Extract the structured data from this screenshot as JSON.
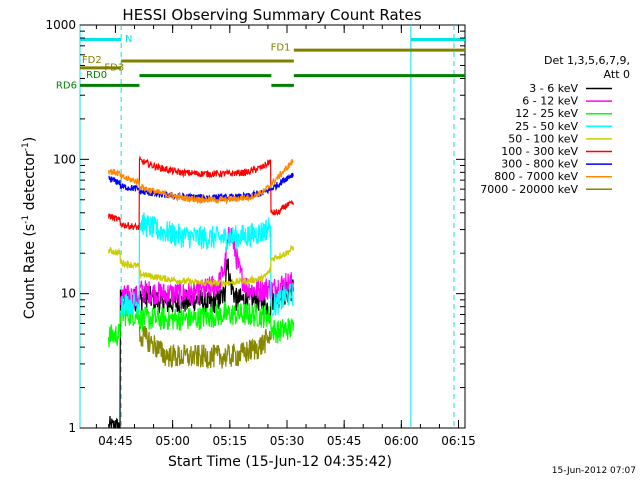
{
  "chart_data": {
    "type": "line",
    "title": "HESSI Observing Summary Count Rates",
    "xlabel": "Start Time (15-Jun-12 04:35:42)",
    "ylabel_main": "Count Rate (s",
    "ylabel_sup1": "-1",
    "ylabel_mid": " detector",
    "ylabel_sup2": "-1",
    "ylabel_end": ")",
    "x_range_minutes": [
      0,
      101
    ],
    "x_ticks": [
      {
        "label": "04:45",
        "t": 9.3
      },
      {
        "label": "05:00",
        "t": 24.3
      },
      {
        "label": "05:15",
        "t": 39.3
      },
      {
        "label": "05:30",
        "t": 54.3
      },
      {
        "label": "05:45",
        "t": 69.3
      },
      {
        "label": "06:00",
        "t": 84.3
      },
      {
        "label": "06:15",
        "t": 99.3
      }
    ],
    "y_scale": "log",
    "y_range": [
      1,
      1000
    ],
    "y_ticks": [
      {
        "label": "1",
        "v": 1
      },
      {
        "label": "10",
        "v": 10
      },
      {
        "label": "100",
        "v": 100
      },
      {
        "label": "1000",
        "v": 1000
      }
    ],
    "legend_title": "Det 1,3,5,6,7,9,",
    "legend_subtitle": "Att 0",
    "legend_placement": "right",
    "series": [
      {
        "name": "3 - 6 keV",
        "color": "#000000",
        "points": [
          [
            7.5,
            1
          ],
          [
            10.5,
            1
          ],
          [
            10.6,
            9
          ],
          [
            15.5,
            9
          ],
          [
            17.5,
            9.5
          ],
          [
            22,
            8.5
          ],
          [
            26,
            8.5
          ],
          [
            30,
            9
          ],
          [
            34,
            8.5
          ],
          [
            36.5,
            9
          ],
          [
            38,
            10
          ],
          [
            38.5,
            18
          ],
          [
            39.5,
            12
          ],
          [
            41,
            9
          ],
          [
            44,
            9
          ],
          [
            47,
            9
          ],
          [
            49,
            8
          ],
          [
            50,
            8
          ],
          [
            50.1,
            9
          ],
          [
            52,
            9.5
          ],
          [
            54,
            10
          ],
          [
            56,
            11
          ]
        ]
      },
      {
        "name": "6 - 12 keV",
        "color": "#ff00ff",
        "points": [
          [
            10.6,
            9.5
          ],
          [
            15.5,
            9.5
          ],
          [
            15.6,
            10.5
          ],
          [
            22,
            10
          ],
          [
            26,
            10
          ],
          [
            30,
            10
          ],
          [
            34,
            11
          ],
          [
            36.5,
            12
          ],
          [
            38,
            16
          ],
          [
            39.3,
            30
          ],
          [
            40.5,
            22
          ],
          [
            42,
            14
          ],
          [
            44,
            11
          ],
          [
            47,
            10.5
          ],
          [
            49,
            11
          ],
          [
            50,
            11
          ],
          [
            50.1,
            10.5
          ],
          [
            52,
            11.5
          ],
          [
            54,
            12
          ],
          [
            56,
            12
          ]
        ]
      },
      {
        "name": "12 - 25 keV",
        "color": "#00ff00",
        "points": [
          [
            7.5,
            4.8
          ],
          [
            10.5,
            5
          ],
          [
            10.6,
            7
          ],
          [
            15.5,
            7
          ],
          [
            15.6,
            6.5
          ],
          [
            22,
            6.5
          ],
          [
            30,
            6.5
          ],
          [
            34,
            6.8
          ],
          [
            38,
            7
          ],
          [
            40,
            7
          ],
          [
            44,
            7
          ],
          [
            49,
            6.8
          ],
          [
            50,
            6.8
          ],
          [
            50.1,
            5.5
          ],
          [
            52,
            5.2
          ],
          [
            54,
            5.5
          ],
          [
            56,
            5.5
          ]
        ]
      },
      {
        "name": "25 - 50 keV",
        "color": "#00ffff",
        "points": [
          [
            10.6,
            8.5
          ],
          [
            15.5,
            8.5
          ],
          [
            15.6,
            34
          ],
          [
            20,
            30
          ],
          [
            26,
            27
          ],
          [
            32,
            26
          ],
          [
            38,
            26
          ],
          [
            44,
            27
          ],
          [
            48,
            29
          ],
          [
            50,
            32
          ],
          [
            50.1,
            8
          ],
          [
            52,
            8.5
          ],
          [
            54,
            9.5
          ],
          [
            56,
            10
          ]
        ]
      },
      {
        "name": "50 - 100 keV",
        "color": "#cccc00",
        "points": [
          [
            7.5,
            21
          ],
          [
            10.5,
            20
          ],
          [
            10.6,
            17
          ],
          [
            15.5,
            16
          ],
          [
            15.6,
            14
          ],
          [
            22,
            13
          ],
          [
            26,
            12.5
          ],
          [
            32,
            12
          ],
          [
            38,
            12
          ],
          [
            44,
            12.5
          ],
          [
            48,
            13
          ],
          [
            50,
            15
          ],
          [
            50.1,
            18
          ],
          [
            52,
            19
          ],
          [
            54,
            20
          ],
          [
            56,
            22
          ]
        ]
      },
      {
        "name": "100 - 300 keV",
        "color": "#ff0000",
        "points": [
          [
            7.5,
            38
          ],
          [
            10.5,
            35
          ],
          [
            10.6,
            33
          ],
          [
            15.5,
            31
          ],
          [
            15.6,
            98
          ],
          [
            20,
            88
          ],
          [
            26,
            80
          ],
          [
            32,
            78
          ],
          [
            38,
            78
          ],
          [
            44,
            80
          ],
          [
            48,
            88
          ],
          [
            50,
            97
          ],
          [
            50.1,
            40
          ],
          [
            52,
            40
          ],
          [
            54,
            45
          ],
          [
            56,
            47
          ]
        ]
      },
      {
        "name": "300 - 800 keV",
        "color": "#0000ff",
        "points": [
          [
            7.5,
            72
          ],
          [
            10.5,
            67
          ],
          [
            10.6,
            63
          ],
          [
            15.5,
            60
          ],
          [
            15.6,
            58
          ],
          [
            20,
            55
          ],
          [
            26,
            53
          ],
          [
            32,
            52
          ],
          [
            38,
            52
          ],
          [
            44,
            53
          ],
          [
            48,
            56
          ],
          [
            50,
            60
          ],
          [
            50.1,
            60
          ],
          [
            52,
            65
          ],
          [
            54,
            72
          ],
          [
            56,
            78
          ]
        ]
      },
      {
        "name": "800 - 7000 keV",
        "color": "#ff8800",
        "points": [
          [
            7.5,
            82
          ],
          [
            10.5,
            78
          ],
          [
            10.6,
            74
          ],
          [
            15.5,
            68
          ],
          [
            15.6,
            63
          ],
          [
            20,
            57
          ],
          [
            26,
            52
          ],
          [
            32,
            50
          ],
          [
            38,
            50
          ],
          [
            44,
            52
          ],
          [
            48,
            57
          ],
          [
            50,
            64
          ],
          [
            50.1,
            65
          ],
          [
            52,
            74
          ],
          [
            54,
            85
          ],
          [
            56,
            98
          ]
        ]
      },
      {
        "name": "7000 - 20000 keV",
        "color": "#888800",
        "points": [
          [
            15.6,
            5
          ],
          [
            18,
            4.5
          ],
          [
            20,
            4
          ],
          [
            22,
            3.5
          ],
          [
            26,
            3.4
          ],
          [
            32,
            3.4
          ],
          [
            38,
            3.4
          ],
          [
            42,
            3.5
          ],
          [
            44,
            3.7
          ],
          [
            47,
            4
          ],
          [
            49,
            4.5
          ],
          [
            50,
            5
          ]
        ]
      }
    ],
    "attenuator_bars": [
      {
        "label": "N",
        "color": "#00e5e5",
        "row_value": 780,
        "segments": [
          [
            0,
            10.8
          ],
          [
            86.8,
            101
          ]
        ]
      },
      {
        "label": "FD1",
        "color": "#808000",
        "row_value": 650,
        "segments": [
          [
            56.1,
            101
          ]
        ]
      },
      {
        "label": "FD2",
        "color": "#808000",
        "row_value": 540,
        "segments": [
          [
            10.8,
            56.1
          ]
        ]
      },
      {
        "label": "FD3",
        "color": "#808000",
        "row_value": 480,
        "segments": [
          [
            0,
            10.8
          ]
        ]
      },
      {
        "label": "RD0",
        "color": "#008000",
        "row_value": 420,
        "segments": [
          [
            15.6,
            50.2
          ],
          [
            56.1,
            101
          ]
        ]
      },
      {
        "label": "RD6",
        "color": "#008000",
        "row_value": 355,
        "segments": [
          [
            0,
            15.6
          ],
          [
            50.2,
            56.1
          ]
        ]
      }
    ],
    "bar_labels": [
      {
        "text": "N",
        "color": "#00e5e5"
      },
      {
        "text": "FD1",
        "color": "#808000"
      },
      {
        "text": "FD2",
        "color": "#808000"
      },
      {
        "text": "FD3",
        "color": "#808000"
      },
      {
        "text": "RD0",
        "color": "#008000"
      },
      {
        "text": "RD6",
        "color": "#008000"
      }
    ],
    "vertical_markers": [
      {
        "t": 0,
        "style": "solid",
        "color": "#00e5e5"
      },
      {
        "t": 10.8,
        "style": "dashed",
        "color": "#00e5e5"
      },
      {
        "t": 86.8,
        "style": "solid",
        "color": "#00e5e5"
      },
      {
        "t": 98.1,
        "style": "dashed",
        "color": "#00e5e5"
      }
    ]
  },
  "timestamp": "15-Jun-2012 07:07"
}
